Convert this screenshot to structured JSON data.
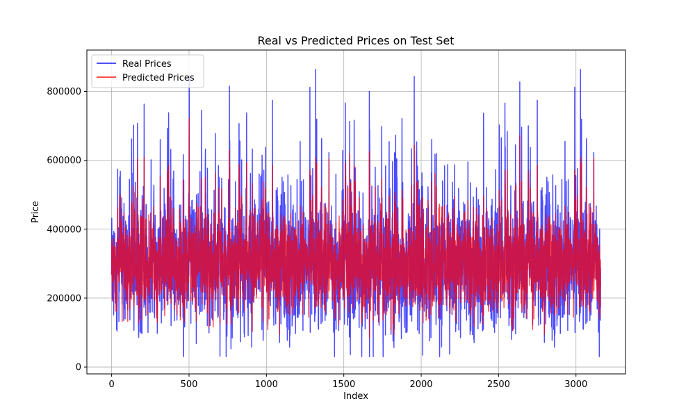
{
  "chart_data": {
    "type": "line",
    "title": "Real vs Predicted Prices on Test Set",
    "xlabel": "Index",
    "ylabel": "Price",
    "xlim": [
      -160,
      3320
    ],
    "ylim": [
      -20000,
      920000
    ],
    "xticks": [
      0,
      500,
      1000,
      1500,
      2000,
      2500,
      3000
    ],
    "xtick_labels": [
      "0",
      "500",
      "1000",
      "1500",
      "2000",
      "2500",
      "3000"
    ],
    "yticks": [
      0,
      200000,
      400000,
      600000,
      800000
    ],
    "ytick_labels": [
      "0",
      "200000",
      "400000",
      "600000",
      "800000"
    ],
    "grid": true,
    "legend_position": "upper-left",
    "x_count": 3160,
    "series": [
      {
        "name": "Real Prices",
        "color": "#0000ff",
        "alpha": 0.7,
        "typical_range": [
          150000,
          450000
        ],
        "min": 30000,
        "max": 875000,
        "mean": 300000
      },
      {
        "name": "Predicted Prices",
        "color": "#ff0000",
        "alpha": 0.7,
        "typical_range": [
          180000,
          420000
        ],
        "min": 85000,
        "max": 750000,
        "mean": 300000
      }
    ]
  }
}
